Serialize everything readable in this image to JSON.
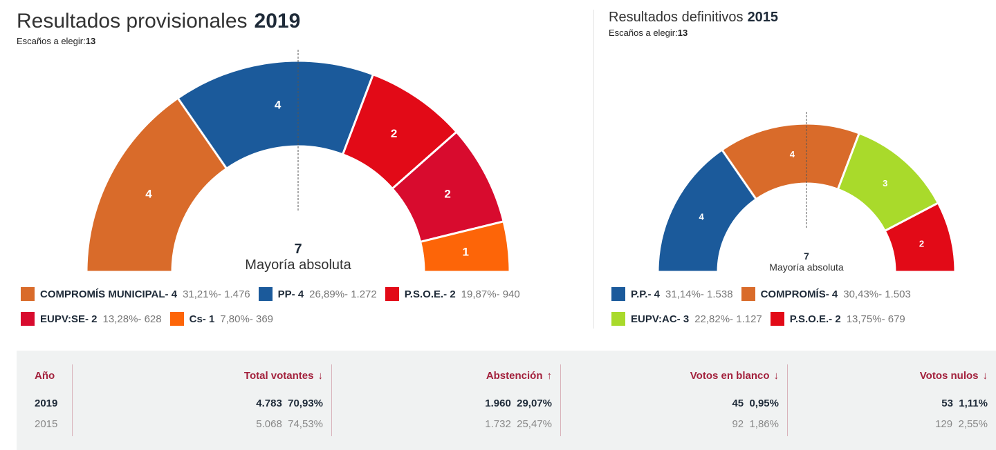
{
  "left": {
    "title": "Resultados provisionales",
    "year": "2019",
    "seats_label": "Escaños a elegir:",
    "seats": "13",
    "majority_value": "7",
    "majority_label": "Mayoría absoluta"
  },
  "right": {
    "title": "Resultados definitivos",
    "year": "2015",
    "seats_label": "Escaños a elegir:",
    "seats": "13",
    "majority_value": "7",
    "majority_label": "Mayoría absoluta"
  },
  "chart_data": [
    {
      "type": "pie",
      "subtype": "hemicycle",
      "total_seats": 13,
      "majority": 7,
      "parties": [
        {
          "name": "COMPROMÍS MUNICIPAL",
          "seats": 4,
          "pct": "31,21%",
          "votes": "1.476",
          "color": "#d96b2a"
        },
        {
          "name": "PP",
          "seats": 4,
          "pct": "26,89%",
          "votes": "1.272",
          "color": "#1b5a9b"
        },
        {
          "name": "P.S.O.E.",
          "seats": 2,
          "pct": "19,87%",
          "votes": "940",
          "color": "#e20a17"
        },
        {
          "name": "EUPV:SE",
          "seats": 2,
          "pct": "13,28%",
          "votes": "628",
          "color": "#d80b2e"
        },
        {
          "name": "Cs",
          "seats": 1,
          "pct": "7,80%",
          "votes": "369",
          "color": "#fd6508"
        }
      ]
    },
    {
      "type": "pie",
      "subtype": "hemicycle",
      "total_seats": 13,
      "majority": 7,
      "parties": [
        {
          "name": "P.P.",
          "seats": 4,
          "pct": "31,14%",
          "votes": "1.538",
          "color": "#1b5a9b"
        },
        {
          "name": "COMPROMÍS",
          "seats": 4,
          "pct": "30,43%",
          "votes": "1.503",
          "color": "#d96b2a"
        },
        {
          "name": "EUPV:AC",
          "seats": 3,
          "pct": "22,82%",
          "votes": "1.127",
          "color": "#a9da2b"
        },
        {
          "name": "P.S.O.E.",
          "seats": 2,
          "pct": "13,75%",
          "votes": "679",
          "color": "#e20a17"
        }
      ]
    }
  ],
  "table": {
    "headers": [
      {
        "label": "Año",
        "arrow": ""
      },
      {
        "label": "Total votantes",
        "arrow": "↓"
      },
      {
        "label": "Abstención",
        "arrow": "↑"
      },
      {
        "label": "Votos en blanco",
        "arrow": "↓"
      },
      {
        "label": "Votos nulos",
        "arrow": "↓"
      }
    ],
    "rows": [
      [
        "2019",
        "4.783  70,93%",
        "1.960  29,07%",
        "45  0,95%",
        "53  1,11%"
      ],
      [
        "2015",
        "5.068  74,53%",
        "1.732  25,47%",
        "92  1,86%",
        "129  2,55%"
      ]
    ]
  }
}
